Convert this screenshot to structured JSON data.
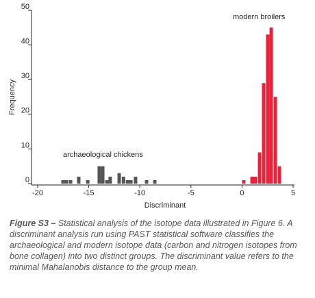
{
  "chart_data": {
    "type": "bar",
    "xlabel": "Discriminant",
    "ylabel": "Frequency",
    "xlim": [
      -20,
      5
    ],
    "xticks": [
      -20,
      -15,
      -10,
      -5,
      0,
      5
    ],
    "ylim": [
      0,
      50
    ],
    "yticks": [
      0,
      10,
      20,
      30,
      40,
      50
    ],
    "series": [
      {
        "name": "archaeological chickens",
        "color": "#555555",
        "x": [
          -17.52,
          -17.18,
          -16.78,
          -15.98,
          -15.1,
          -13.97,
          -13.63,
          -13.23,
          -12.9,
          -12.02,
          -11.6,
          -11.2,
          -10.88,
          -10.42,
          -9.34,
          -8.54
        ],
        "values": [
          1,
          1,
          1,
          2,
          1,
          5,
          5,
          1,
          2,
          3,
          2,
          1,
          1,
          2,
          1,
          1
        ]
      },
      {
        "name": "modern broilers",
        "color": "#e8223a",
        "x": [
          0.17,
          0.98,
          1.31,
          1.72,
          2.12,
          2.52,
          2.86,
          3.26,
          3.66
        ],
        "values": [
          1,
          2,
          2,
          9,
          29,
          43,
          45,
          25,
          5
        ]
      }
    ]
  },
  "caption": {
    "label": "Figure S3 –",
    "text": "Statistical analysis of the isotope data illustrated in Figure 6. A discriminant analysis run using PAST statistical software classifies the archaeological and modern isotope data (carbon and nitrogen isotopes from bone collagen) into two distinct groups. The discriminant value refers to the minimal Mahalanobis distance to the group mean."
  }
}
